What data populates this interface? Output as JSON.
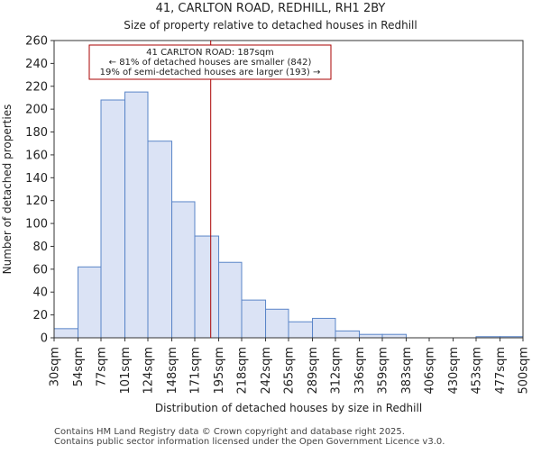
{
  "chart_data": {
    "type": "bar",
    "title": "41, CARLTON ROAD, REDHILL, RH1 2BY",
    "subtitle": "Size of property relative to detached houses in Redhill",
    "xlabel": "Distribution of detached houses by size in Redhill",
    "ylabel": "Number of detached properties",
    "ylim": [
      0,
      260
    ],
    "yticks": [
      0,
      20,
      40,
      60,
      80,
      100,
      120,
      140,
      160,
      180,
      200,
      220,
      240,
      260
    ],
    "bin_edges": [
      30,
      54,
      77,
      101,
      124,
      148,
      171,
      195,
      218,
      242,
      265,
      289,
      312,
      336,
      359,
      383,
      406,
      430,
      453,
      477,
      500
    ],
    "tick_labels": [
      "30sqm",
      "54sqm",
      "77sqm",
      "101sqm",
      "124sqm",
      "148sqm",
      "171sqm",
      "195sqm",
      "218sqm",
      "242sqm",
      "265sqm",
      "289sqm",
      "312sqm",
      "336sqm",
      "359sqm",
      "383sqm",
      "406sqm",
      "430sqm",
      "453sqm",
      "477sqm",
      "500sqm"
    ],
    "values": [
      8,
      62,
      208,
      215,
      172,
      119,
      89,
      66,
      33,
      25,
      14,
      17,
      6,
      3,
      3,
      0,
      0,
      0,
      1,
      1
    ],
    "highlight_count": 7,
    "bar_color": "#dbe3f5",
    "bar_highlight_color": "#ffffff",
    "bar_edge_color": "#5a85c8",
    "marker": {
      "value": 187,
      "color": "#aa0000"
    },
    "annotation": {
      "lines": [
        "41 CARLTON ROAD: 187sqm",
        "← 81% of detached houses are smaller (842)",
        "19% of semi-detached houses are larger (193) →"
      ],
      "border_color": "#aa0000"
    }
  },
  "footer": {
    "line1": "Contains HM Land Registry data © Crown copyright and database right 2025.",
    "line2": "Contains public sector information licensed under the Open Government Licence v3.0."
  }
}
